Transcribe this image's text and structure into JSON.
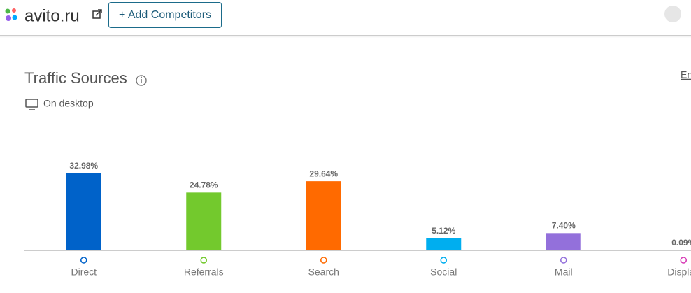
{
  "header": {
    "site": "avito.ru",
    "button": "+ Add Competitors"
  },
  "section": {
    "title": "Traffic Sources",
    "subtitle": "On desktop",
    "link": "En"
  },
  "chart_data": {
    "type": "bar",
    "categories": [
      "Direct",
      "Referrals",
      "Search",
      "Social",
      "Mail",
      "Display"
    ],
    "values": [
      32.98,
      24.78,
      29.64,
      5.12,
      7.4,
      0.09
    ],
    "value_labels": [
      "32.98%",
      "24.78%",
      "29.64%",
      "5.12%",
      "7.40%",
      "0.09%"
    ],
    "colors": [
      "#0062c9",
      "#73c92d",
      "#ff6a00",
      "#00aeef",
      "#9370db",
      "#d63ab5"
    ]
  }
}
